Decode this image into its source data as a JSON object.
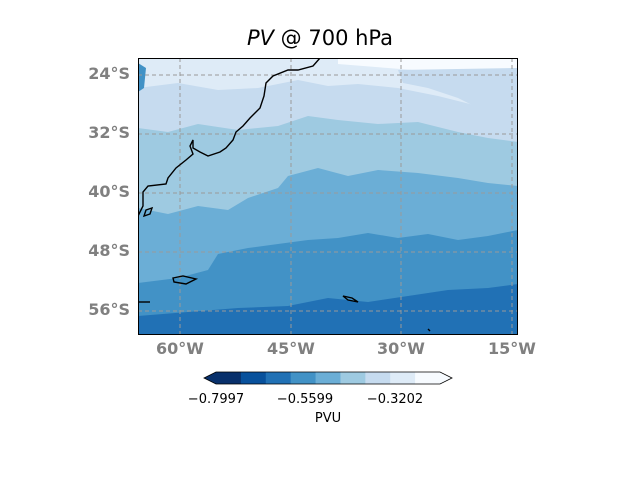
{
  "title": {
    "variable": "PV",
    "rest": " @ 700 hPa"
  },
  "lat_labels": [
    "24°S",
    "32°S",
    "40°S",
    "48°S",
    "56°S"
  ],
  "lon_labels": [
    "60°W",
    "45°W",
    "30°W",
    "15°W"
  ],
  "colorbar": {
    "ticks": [
      "−0.7997",
      "−0.5599",
      "−0.3202"
    ],
    "label": "PVU",
    "colors": [
      "#08306b",
      "#08519c",
      "#2171b5",
      "#4292c6",
      "#6baed6",
      "#9ecae1",
      "#c6dbef",
      "#deebf7",
      "#f7fbff"
    ],
    "extend": "both"
  },
  "colors": {
    "coastline": "#000000",
    "gridlines": "#999999",
    "tick_label": "#808080"
  }
}
